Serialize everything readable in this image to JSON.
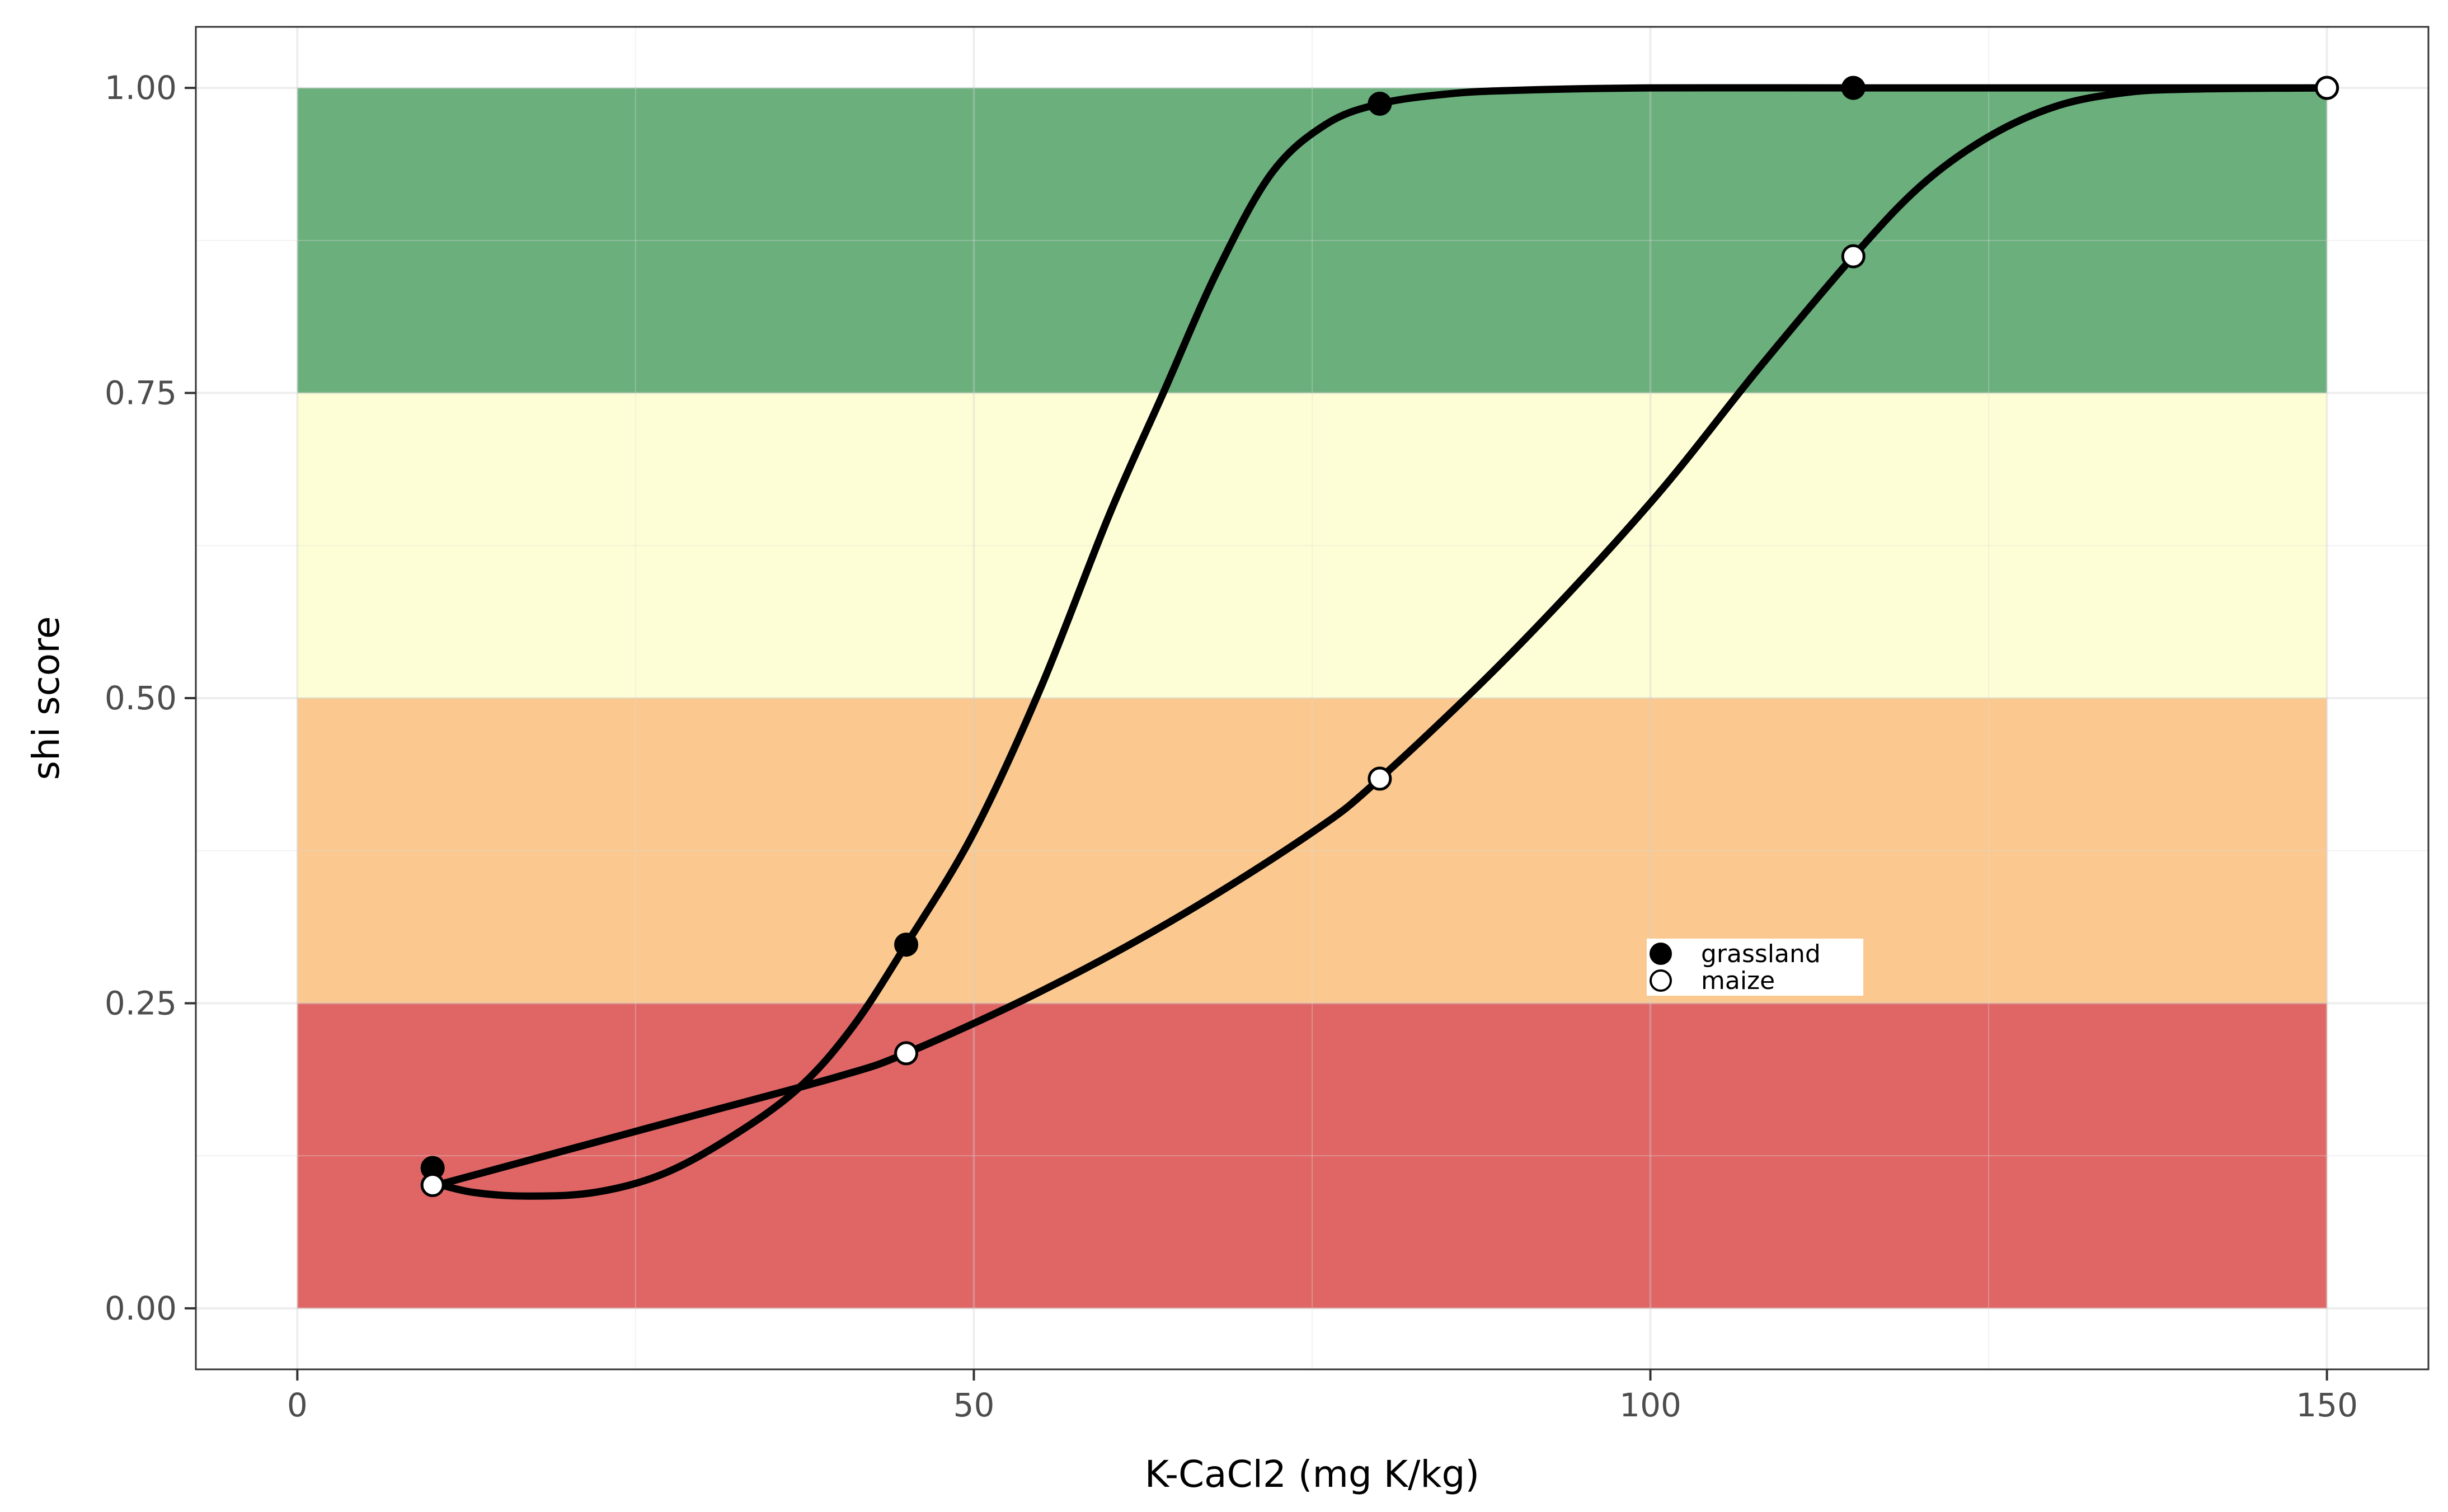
{
  "chart_data": {
    "type": "line",
    "title": "",
    "xlabel": "K-CaCl2 (mg K/kg)",
    "ylabel": "shi score",
    "xlim": [
      -7.5,
      157.5
    ],
    "ylim": [
      -0.05,
      1.05
    ],
    "x_ticks": [
      0,
      50,
      100,
      150
    ],
    "y_ticks": [
      0,
      0.25,
      0.5,
      0.75,
      1
    ],
    "x_tick_labels": [
      "0",
      "50",
      "100",
      "150"
    ],
    "y_tick_labels": [
      "0.00",
      "0.25",
      "0.50",
      "0.75",
      "1.00"
    ],
    "grid": true,
    "legend_position": "inside-center-right",
    "bands": [
      {
        "y0": 0.0,
        "y1": 0.25,
        "color": "#e06666"
      },
      {
        "y0": 0.25,
        "y1": 0.5,
        "color": "#fbc98f"
      },
      {
        "y0": 0.5,
        "y1": 0.75,
        "color": "#fefed6"
      },
      {
        "y0": 0.75,
        "y1": 1.0,
        "color": "#6aaf7c"
      }
    ],
    "series": [
      {
        "name": "grassland",
        "marker": "filled",
        "x": [
          10,
          45,
          80,
          115,
          150
        ],
        "y": [
          0.115,
          0.298,
          0.987,
          1.0,
          1.0
        ],
        "curve": [
          [
            10,
            0.103
          ],
          [
            13,
            0.095
          ],
          [
            17,
            0.092
          ],
          [
            22,
            0.095
          ],
          [
            27,
            0.11
          ],
          [
            32,
            0.14
          ],
          [
            37,
            0.18
          ],
          [
            41,
            0.23
          ],
          [
            45,
            0.298
          ],
          [
            50,
            0.39
          ],
          [
            55,
            0.51
          ],
          [
            60,
            0.65
          ],
          [
            64,
            0.75
          ],
          [
            68,
            0.85
          ],
          [
            72,
            0.93
          ],
          [
            76,
            0.97
          ],
          [
            80,
            0.987
          ],
          [
            85,
            0.995
          ],
          [
            90,
            0.998
          ],
          [
            100,
            1.0
          ],
          [
            115,
            1.0
          ],
          [
            130,
            1.0
          ],
          [
            150,
            1.0
          ]
        ]
      },
      {
        "name": "maize",
        "marker": "open",
        "x": [
          10,
          45,
          80,
          115,
          150
        ],
        "y": [
          0.101,
          0.209,
          0.434,
          0.862,
          1.0
        ],
        "curve": [
          [
            10,
            0.1
          ],
          [
            20,
            0.13
          ],
          [
            30,
            0.16
          ],
          [
            40,
            0.19
          ],
          [
            45,
            0.209
          ],
          [
            55,
            0.26
          ],
          [
            65,
            0.32
          ],
          [
            75,
            0.39
          ],
          [
            80,
            0.434
          ],
          [
            90,
            0.54
          ],
          [
            100,
            0.66
          ],
          [
            108,
            0.77
          ],
          [
            115,
            0.862
          ],
          [
            120,
            0.92
          ],
          [
            125,
            0.96
          ],
          [
            130,
            0.985
          ],
          [
            135,
            0.996
          ],
          [
            140,
            0.999
          ],
          [
            150,
            1.0
          ]
        ]
      }
    ]
  }
}
